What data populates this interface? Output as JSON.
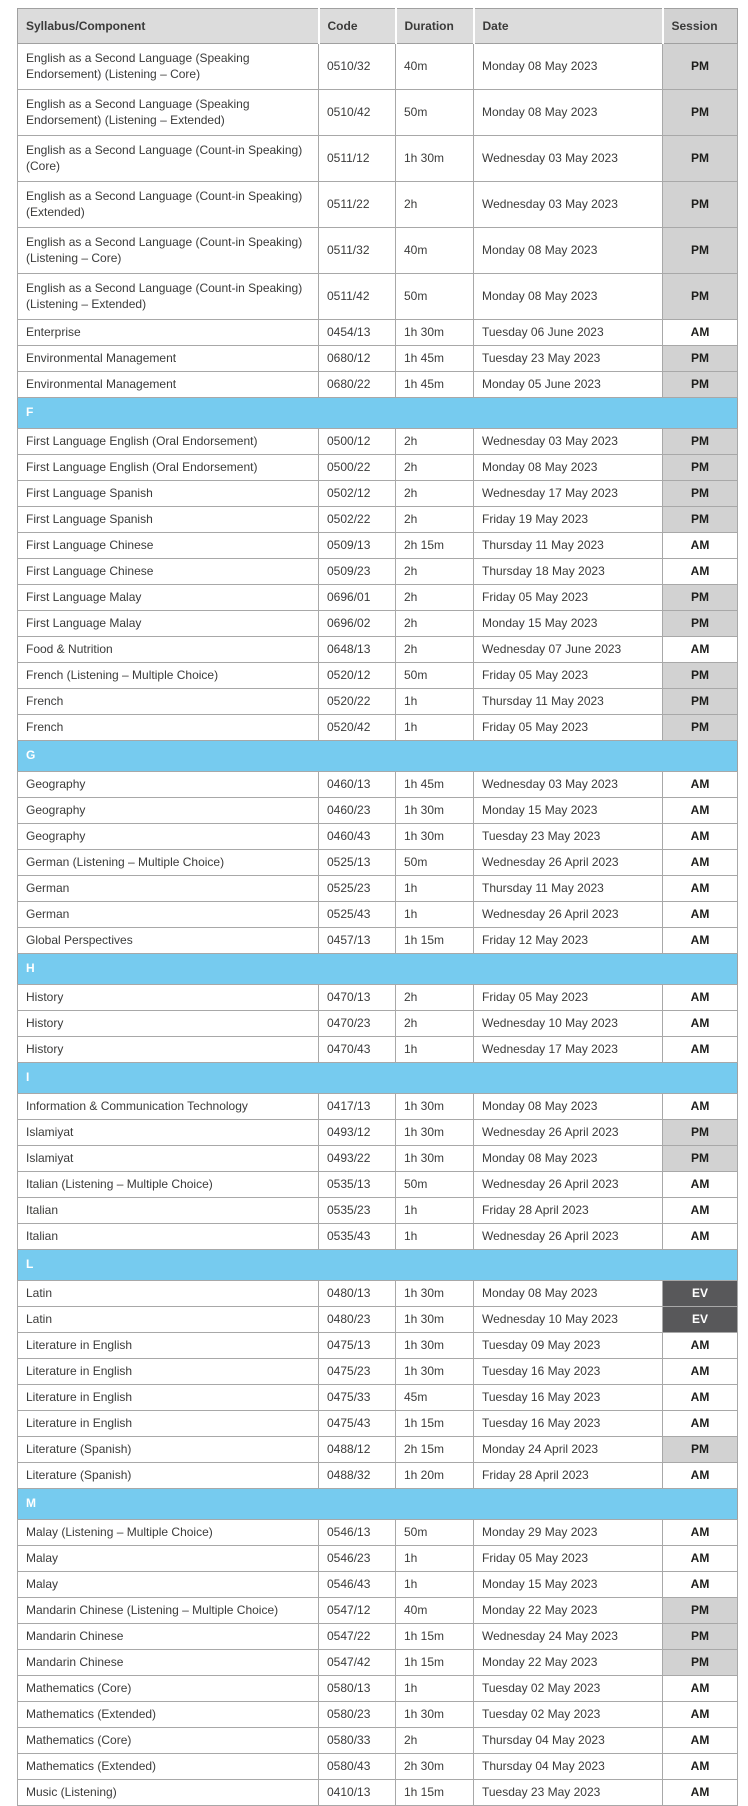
{
  "table": {
    "headers": {
      "syllabus": "Syllabus/Component",
      "code": "Code",
      "duration": "Duration",
      "date": "Date",
      "session": "Session"
    },
    "rows": [
      {
        "kind": "data",
        "lines": 2,
        "syllabus": "English as a Second Language (Speaking Endorsement) (Listening – Core)",
        "code": "0510/32",
        "duration": "40m",
        "date": "Monday 08 May 2023",
        "session": "PM"
      },
      {
        "kind": "data",
        "lines": 2,
        "syllabus": "English as a Second Language (Speaking Endorsement) (Listening – Extended)",
        "code": "0510/42",
        "duration": "50m",
        "date": "Monday 08 May 2023",
        "session": "PM"
      },
      {
        "kind": "data",
        "lines": 2,
        "syllabus": "English as a Second Language (Count-in Speaking) (Core)",
        "code": "0511/12",
        "duration": "1h 30m",
        "date": "Wednesday 03 May 2023",
        "session": "PM"
      },
      {
        "kind": "data",
        "lines": 2,
        "syllabus": "English as a Second Language (Count-in Speaking) (Extended)",
        "code": "0511/22",
        "duration": "2h",
        "date": "Wednesday 03 May 2023",
        "session": "PM"
      },
      {
        "kind": "data",
        "lines": 2,
        "syllabus": "English as a Second Language (Count-in Speaking) (Listening – Core)",
        "code": "0511/32",
        "duration": "40m",
        "date": "Monday 08 May 2023",
        "session": "PM"
      },
      {
        "kind": "data",
        "lines": 2,
        "syllabus": "English as a Second Language (Count-in Speaking) (Listening – Extended)",
        "code": "0511/42",
        "duration": "50m",
        "date": "Monday 08 May 2023",
        "session": "PM"
      },
      {
        "kind": "data",
        "lines": 1,
        "syllabus": "Enterprise",
        "code": "0454/13",
        "duration": "1h 30m",
        "date": "Tuesday 06 June 2023",
        "session": "AM"
      },
      {
        "kind": "data",
        "lines": 1,
        "syllabus": "Environmental Management",
        "code": "0680/12",
        "duration": "1h 45m",
        "date": "Tuesday 23 May 2023",
        "session": "PM"
      },
      {
        "kind": "data",
        "lines": 1,
        "syllabus": "Environmental Management",
        "code": "0680/22",
        "duration": "1h 45m",
        "date": "Monday 05 June 2023",
        "session": "PM"
      },
      {
        "kind": "divider",
        "letter": "F"
      },
      {
        "kind": "data",
        "lines": 1,
        "syllabus": "First Language English (Oral Endorsement)",
        "code": "0500/12",
        "duration": "2h",
        "date": "Wednesday 03 May 2023",
        "session": "PM"
      },
      {
        "kind": "data",
        "lines": 1,
        "syllabus": "First Language English (Oral Endorsement)",
        "code": "0500/22",
        "duration": "2h",
        "date": "Monday 08 May 2023",
        "session": "PM"
      },
      {
        "kind": "data",
        "lines": 1,
        "syllabus": "First Language Spanish",
        "code": "0502/12",
        "duration": "2h",
        "date": "Wednesday 17 May 2023",
        "session": "PM"
      },
      {
        "kind": "data",
        "lines": 1,
        "syllabus": "First Language Spanish",
        "code": "0502/22",
        "duration": "2h",
        "date": "Friday 19 May 2023",
        "session": "PM"
      },
      {
        "kind": "data",
        "lines": 1,
        "syllabus": "First Language Chinese",
        "code": "0509/13",
        "duration": "2h 15m",
        "date": "Thursday 11 May 2023",
        "session": "AM"
      },
      {
        "kind": "data",
        "lines": 1,
        "syllabus": "First Language Chinese",
        "code": "0509/23",
        "duration": "2h",
        "date": "Thursday 18 May 2023",
        "session": "AM"
      },
      {
        "kind": "data",
        "lines": 1,
        "syllabus": "First Language Malay",
        "code": "0696/01",
        "duration": "2h",
        "date": "Friday 05 May 2023",
        "session": "PM"
      },
      {
        "kind": "data",
        "lines": 1,
        "syllabus": "First Language Malay",
        "code": "0696/02",
        "duration": "2h",
        "date": "Monday 15 May 2023",
        "session": "PM"
      },
      {
        "kind": "data",
        "lines": 1,
        "syllabus": "Food & Nutrition",
        "code": "0648/13",
        "duration": "2h",
        "date": "Wednesday 07 June 2023",
        "session": "AM"
      },
      {
        "kind": "data",
        "lines": 1,
        "syllabus": "French (Listening – Multiple Choice)",
        "code": "0520/12",
        "duration": "50m",
        "date": "Friday 05 May 2023",
        "session": "PM"
      },
      {
        "kind": "data",
        "lines": 1,
        "syllabus": "French",
        "code": "0520/22",
        "duration": "1h",
        "date": "Thursday 11 May 2023",
        "session": "PM"
      },
      {
        "kind": "data",
        "lines": 1,
        "syllabus": "French",
        "code": "0520/42",
        "duration": "1h",
        "date": "Friday 05 May 2023",
        "session": "PM"
      },
      {
        "kind": "divider",
        "letter": "G"
      },
      {
        "kind": "data",
        "lines": 1,
        "syllabus": "Geography",
        "code": "0460/13",
        "duration": "1h 45m",
        "date": "Wednesday 03 May 2023",
        "session": "AM"
      },
      {
        "kind": "data",
        "lines": 1,
        "syllabus": "Geography",
        "code": "0460/23",
        "duration": "1h 30m",
        "date": "Monday 15 May 2023",
        "session": "AM"
      },
      {
        "kind": "data",
        "lines": 1,
        "syllabus": "Geography",
        "code": "0460/43",
        "duration": "1h 30m",
        "date": "Tuesday 23 May 2023",
        "session": "AM"
      },
      {
        "kind": "data",
        "lines": 1,
        "syllabus": "German (Listening – Multiple Choice)",
        "code": "0525/13",
        "duration": "50m",
        "date": "Wednesday 26 April 2023",
        "session": "AM"
      },
      {
        "kind": "data",
        "lines": 1,
        "syllabus": "German",
        "code": "0525/23",
        "duration": "1h",
        "date": "Thursday 11 May 2023",
        "session": "AM"
      },
      {
        "kind": "data",
        "lines": 1,
        "syllabus": "German",
        "code": "0525/43",
        "duration": "1h",
        "date": "Wednesday 26 April 2023",
        "session": "AM"
      },
      {
        "kind": "data",
        "lines": 1,
        "syllabus": "Global Perspectives",
        "code": "0457/13",
        "duration": "1h 15m",
        "date": "Friday 12 May 2023",
        "session": "AM"
      },
      {
        "kind": "divider",
        "letter": "H"
      },
      {
        "kind": "data",
        "lines": 1,
        "syllabus": "History",
        "code": "0470/13",
        "duration": "2h",
        "date": "Friday 05 May 2023",
        "session": "AM"
      },
      {
        "kind": "data",
        "lines": 1,
        "syllabus": "History",
        "code": "0470/23",
        "duration": "2h",
        "date": "Wednesday 10 May 2023",
        "session": "AM"
      },
      {
        "kind": "data",
        "lines": 1,
        "syllabus": "History",
        "code": "0470/43",
        "duration": "1h",
        "date": "Wednesday 17 May 2023",
        "session": "AM"
      },
      {
        "kind": "divider",
        "letter": "I"
      },
      {
        "kind": "data",
        "lines": 1,
        "syllabus": "Information & Communication Technology",
        "code": "0417/13",
        "duration": "1h 30m",
        "date": "Monday 08 May 2023",
        "session": "AM"
      },
      {
        "kind": "data",
        "lines": 1,
        "syllabus": "Islamiyat",
        "code": "0493/12",
        "duration": "1h 30m",
        "date": "Wednesday 26 April 2023",
        "session": "PM"
      },
      {
        "kind": "data",
        "lines": 1,
        "syllabus": "Islamiyat",
        "code": "0493/22",
        "duration": "1h 30m",
        "date": "Monday 08 May 2023",
        "session": "PM"
      },
      {
        "kind": "data",
        "lines": 1,
        "syllabus": "Italian (Listening – Multiple Choice)",
        "code": "0535/13",
        "duration": "50m",
        "date": "Wednesday 26 April 2023",
        "session": "AM"
      },
      {
        "kind": "data",
        "lines": 1,
        "syllabus": "Italian",
        "code": "0535/23",
        "duration": "1h",
        "date": "Friday 28 April 2023",
        "session": "AM"
      },
      {
        "kind": "data",
        "lines": 1,
        "syllabus": "Italian",
        "code": "0535/43",
        "duration": "1h",
        "date": "Wednesday 26 April 2023",
        "session": "AM"
      },
      {
        "kind": "divider",
        "letter": "L"
      },
      {
        "kind": "data",
        "lines": 1,
        "syllabus": "Latin",
        "code": "0480/13",
        "duration": "1h 30m",
        "date": "Monday 08 May 2023",
        "session": "EV"
      },
      {
        "kind": "data",
        "lines": 1,
        "syllabus": "Latin",
        "code": "0480/23",
        "duration": "1h 30m",
        "date": "Wednesday 10 May 2023",
        "session": "EV"
      },
      {
        "kind": "data",
        "lines": 1,
        "syllabus": "Literature in English",
        "code": "0475/13",
        "duration": "1h 30m",
        "date": "Tuesday 09 May 2023",
        "session": "AM"
      },
      {
        "kind": "data",
        "lines": 1,
        "syllabus": "Literature in English",
        "code": "0475/23",
        "duration": "1h 30m",
        "date": "Tuesday 16 May 2023",
        "session": "AM"
      },
      {
        "kind": "data",
        "lines": 1,
        "syllabus": "Literature in English",
        "code": "0475/33",
        "duration": "45m",
        "date": "Tuesday 16 May 2023",
        "session": "AM"
      },
      {
        "kind": "data",
        "lines": 1,
        "syllabus": "Literature in English",
        "code": "0475/43",
        "duration": "1h 15m",
        "date": "Tuesday 16 May 2023",
        "session": "AM"
      },
      {
        "kind": "data",
        "lines": 1,
        "syllabus": "Literature (Spanish)",
        "code": "0488/12",
        "duration": "2h 15m",
        "date": "Monday 24 April 2023",
        "session": "PM"
      },
      {
        "kind": "data",
        "lines": 1,
        "syllabus": "Literature (Spanish)",
        "code": "0488/32",
        "duration": "1h 20m",
        "date": "Friday 28 April 2023",
        "session": "AM"
      },
      {
        "kind": "divider",
        "letter": "M"
      },
      {
        "kind": "data",
        "lines": 1,
        "syllabus": "Malay (Listening – Multiple Choice)",
        "code": "0546/13",
        "duration": "50m",
        "date": "Monday 29 May 2023",
        "session": "AM"
      },
      {
        "kind": "data",
        "lines": 1,
        "syllabus": "Malay",
        "code": "0546/23",
        "duration": "1h",
        "date": "Friday 05 May 2023",
        "session": "AM"
      },
      {
        "kind": "data",
        "lines": 1,
        "syllabus": "Malay",
        "code": "0546/43",
        "duration": "1h",
        "date": "Monday 15 May 2023",
        "session": "AM"
      },
      {
        "kind": "data",
        "lines": 1,
        "syllabus": "Mandarin Chinese (Listening – Multiple Choice)",
        "code": "0547/12",
        "duration": "40m",
        "date": "Monday 22 May 2023",
        "session": "PM"
      },
      {
        "kind": "data",
        "lines": 1,
        "syllabus": "Mandarin Chinese",
        "code": "0547/22",
        "duration": "1h 15m",
        "date": "Wednesday 24 May 2023",
        "session": "PM"
      },
      {
        "kind": "data",
        "lines": 1,
        "syllabus": "Mandarin Chinese",
        "code": "0547/42",
        "duration": "1h 15m",
        "date": "Monday 22 May 2023",
        "session": "PM"
      },
      {
        "kind": "data",
        "lines": 1,
        "syllabus": "Mathematics (Core)",
        "code": "0580/13",
        "duration": "1h",
        "date": "Tuesday 02 May 2023",
        "session": "AM"
      },
      {
        "kind": "data",
        "lines": 1,
        "syllabus": "Mathematics (Extended)",
        "code": "0580/23",
        "duration": "1h 30m",
        "date": "Tuesday 02 May 2023",
        "session": "AM"
      },
      {
        "kind": "data",
        "lines": 1,
        "syllabus": "Mathematics (Core)",
        "code": "0580/33",
        "duration": "2h",
        "date": "Thursday 04 May 2023",
        "session": "AM"
      },
      {
        "kind": "data",
        "lines": 1,
        "syllabus": "Mathematics (Extended)",
        "code": "0580/43",
        "duration": "2h 30m",
        "date": "Thursday 04 May 2023",
        "session": "AM"
      },
      {
        "kind": "data",
        "lines": 1,
        "syllabus": "Music (Listening)",
        "code": "0410/13",
        "duration": "1h 15m",
        "date": "Tuesday 23 May 2023",
        "session": "AM"
      }
    ]
  },
  "colors": {
    "section_divider_blue": "#76cbef",
    "header_gray": "#dcdcdc",
    "session_pm_gray": "#d2d2d2",
    "session_ev_dark": "#58585a",
    "body_text": "#3b3b3a",
    "border_gray": "#a8a8a8"
  }
}
